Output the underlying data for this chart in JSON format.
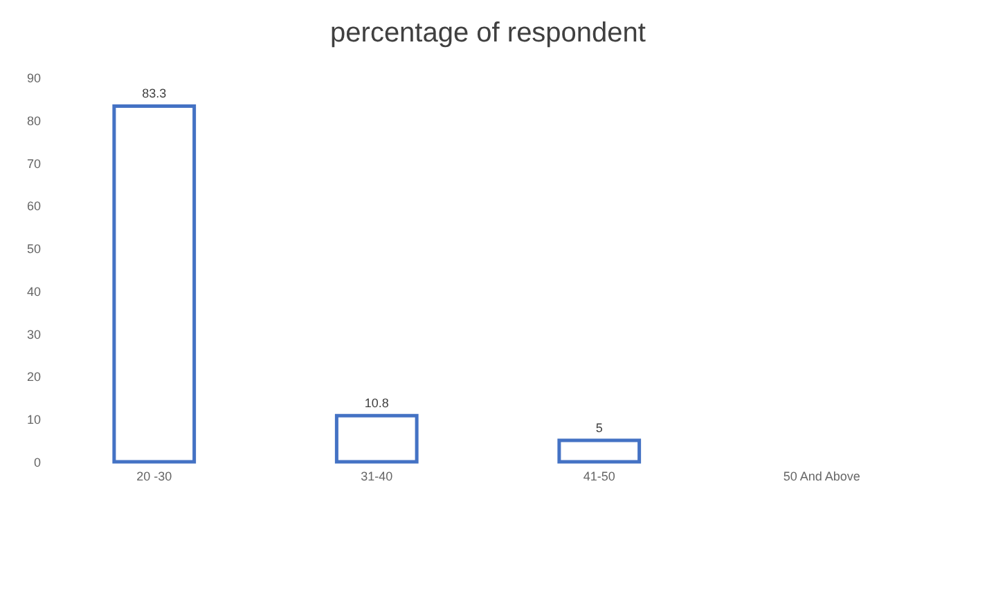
{
  "chart_data": {
    "type": "bar",
    "title": "percentage  of respondent",
    "categories": [
      "20 -30",
      "31-40",
      "41-50",
      "50 And Above"
    ],
    "values": [
      83.3,
      10.8,
      5,
      null
    ],
    "value_labels": [
      "83.3",
      "10.8",
      "5",
      null
    ],
    "color": "#4472c4",
    "ylim": [
      0,
      90
    ],
    "yticks": [
      0,
      10,
      20,
      30,
      40,
      50,
      60,
      70,
      80,
      90
    ],
    "grid": false
  }
}
